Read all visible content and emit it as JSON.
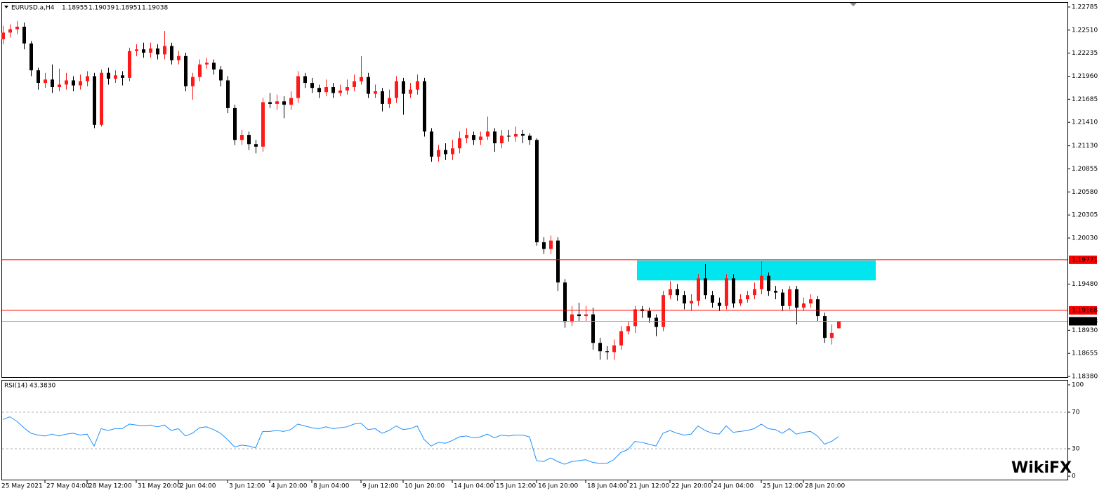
{
  "chart_data": {
    "type": "candlestick",
    "title": "EURUSD.a,H4",
    "bull_color": "#ff1a1a",
    "bear_color": "#000000",
    "ylim": [
      1.18372,
      1.22835
    ],
    "yticks": [
      1.22785,
      {
        "value": 1.2251,
        "label": "1.22510"
      },
      1.22235,
      {
        "value": 1.2196,
        "label": "1.21960"
      },
      1.21685,
      {
        "value": 1.2141,
        "label": "1.21410"
      },
      {
        "value": 1.2113,
        "label": "1.21130"
      },
      1.20855,
      {
        "value": 1.2058,
        "label": "1.20580"
      },
      1.20305,
      {
        "value": 1.2003,
        "label": "1.20030"
      },
      {
        "value": 1.1948,
        "label": "1.19480"
      },
      {
        "value": 1.1893,
        "label": "1.18930"
      },
      1.18655,
      {
        "value": 1.1838,
        "label": "1.18380"
      }
    ],
    "levels": [
      {
        "value": 1.19771,
        "color": "#ff0000"
      },
      {
        "value": 1.19168,
        "color": "#ff0000"
      }
    ],
    "zone": {
      "low": 1.19525,
      "high": 1.19763,
      "color": "#00e5ee"
    },
    "categories": [
      null,
      null,
      null,
      null,
      null,
      null,
      "27 May 04:00",
      null,
      null,
      null,
      null,
      null,
      "28 May 12:00",
      null,
      null,
      null,
      null,
      null,
      null,
      "31 May 20:00",
      null,
      null,
      null,
      null,
      null,
      "2 Jun 04:00",
      null,
      null,
      null,
      null,
      null,
      null,
      "3 Jun 12:00",
      null,
      null,
      null,
      null,
      null,
      "4 Jun 20:00",
      null,
      null,
      null,
      null,
      null,
      "8 Jun 04:00",
      null,
      null,
      null,
      null,
      null,
      null,
      "9 Jun 12:00",
      null,
      null,
      null,
      null,
      null,
      "10 Jun 20:00",
      null,
      null,
      null,
      null,
      null,
      null,
      "14 Jun 04:00",
      null,
      null,
      null,
      null,
      null,
      "15 Jun 12:00",
      null,
      null,
      null,
      null,
      null,
      "16 Jun 20:00",
      null,
      null,
      null,
      null,
      null,
      null,
      "18 Jun 04:00",
      null,
      null,
      null,
      null,
      null,
      "21 Jun 12:00",
      null,
      null,
      null,
      null,
      null,
      "22 Jun 20:00",
      null,
      null,
      null,
      null,
      null,
      "24 Jun 04:00",
      null,
      null,
      null,
      null,
      null,
      null,
      "25 Jun 12:00",
      null,
      null,
      null,
      null,
      null,
      "28 Jun 20:00",
      null,
      null,
      null,
      null,
      null
    ],
    "first_label": "25 May 2021",
    "candles": [
      [
        1.224,
        1.2256,
        1.2234,
        1.2248
      ],
      [
        1.2248,
        1.2258,
        1.2242,
        1.2252
      ],
      [
        1.2252,
        1.2262,
        1.2246,
        1.2255
      ],
      [
        1.2255,
        1.226,
        1.2228,
        1.2235
      ],
      [
        1.2235,
        1.2238,
        1.2196,
        1.2203
      ],
      [
        1.2203,
        1.2206,
        1.218,
        1.2188
      ],
      [
        1.2188,
        1.22,
        1.2182,
        1.2192
      ],
      [
        1.2192,
        1.221,
        1.2176,
        1.2183
      ],
      [
        1.2183,
        1.2205,
        1.2178,
        1.2186
      ],
      [
        1.2186,
        1.22,
        1.218,
        1.2191
      ],
      [
        1.2191,
        1.2196,
        1.2178,
        1.2185
      ],
      [
        1.2185,
        1.2198,
        1.218,
        1.219
      ],
      [
        1.219,
        1.2202,
        1.2184,
        1.2196
      ],
      [
        1.2196,
        1.22,
        1.2134,
        1.2138
      ],
      [
        1.2138,
        1.2204,
        1.2136,
        1.22
      ],
      [
        1.22,
        1.2206,
        1.2186,
        1.2193
      ],
      [
        1.2193,
        1.2203,
        1.2188,
        1.2197
      ],
      [
        1.2197,
        1.2202,
        1.2185,
        1.2194
      ],
      [
        1.2194,
        1.223,
        1.219,
        1.2226
      ],
      [
        1.2226,
        1.2234,
        1.222,
        1.2228
      ],
      [
        1.2228,
        1.2236,
        1.2218,
        1.2224
      ],
      [
        1.2224,
        1.2236,
        1.2218,
        1.2229
      ],
      [
        1.2229,
        1.2234,
        1.2216,
        1.2222
      ],
      [
        1.2222,
        1.225,
        1.2216,
        1.2232
      ],
      [
        1.2232,
        1.2236,
        1.221,
        1.2215
      ],
      [
        1.2215,
        1.2226,
        1.221,
        1.222
      ],
      [
        1.222,
        1.2224,
        1.2178,
        1.2184
      ],
      [
        1.2184,
        1.22,
        1.2168,
        1.2195
      ],
      [
        1.2195,
        1.2216,
        1.219,
        1.221
      ],
      [
        1.221,
        1.2218,
        1.2205,
        1.2212
      ],
      [
        1.2212,
        1.2216,
        1.2198,
        1.2204
      ],
      [
        1.2204,
        1.2208,
        1.2184,
        1.2191
      ],
      [
        1.2191,
        1.2196,
        1.2152,
        1.2158
      ],
      [
        1.2158,
        1.2162,
        1.2114,
        1.212
      ],
      [
        1.212,
        1.2132,
        1.2114,
        1.2126
      ],
      [
        1.2126,
        1.213,
        1.2108,
        1.2115
      ],
      [
        1.2115,
        1.212,
        1.2104,
        1.2112
      ],
      [
        1.2112,
        1.217,
        1.2106,
        1.2165
      ],
      [
        1.2165,
        1.2176,
        1.2158,
        1.2163
      ],
      [
        1.2163,
        1.2174,
        1.2156,
        1.2166
      ],
      [
        1.2166,
        1.2172,
        1.2146,
        1.2162
      ],
      [
        1.2162,
        1.2178,
        1.2156,
        1.217
      ],
      [
        1.217,
        1.2202,
        1.2164,
        1.2196
      ],
      [
        1.2196,
        1.22,
        1.2182,
        1.2188
      ],
      [
        1.2188,
        1.2194,
        1.2176,
        1.2182
      ],
      [
        1.2182,
        1.2186,
        1.217,
        1.2177
      ],
      [
        1.2177,
        1.2192,
        1.2172,
        1.2183
      ],
      [
        1.2183,
        1.2188,
        1.217,
        1.2176
      ],
      [
        1.2176,
        1.2186,
        1.2172,
        1.2179
      ],
      [
        1.2179,
        1.2192,
        1.2174,
        1.2183
      ],
      [
        1.2183,
        1.2198,
        1.2178,
        1.219
      ],
      [
        1.219,
        1.222,
        1.2186,
        1.2195
      ],
      [
        1.2195,
        1.22,
        1.217,
        1.2175
      ],
      [
        1.2175,
        1.2186,
        1.217,
        1.2178
      ],
      [
        1.2178,
        1.2182,
        1.2154,
        1.2163
      ],
      [
        1.2163,
        1.218,
        1.2158,
        1.217
      ],
      [
        1.217,
        1.2196,
        1.2164,
        1.219
      ],
      [
        1.219,
        1.2194,
        1.215,
        1.2175
      ],
      [
        1.2175,
        1.2188,
        1.217,
        1.218
      ],
      [
        1.218,
        1.2198,
        1.2174,
        1.219
      ],
      [
        1.219,
        1.2194,
        1.2124,
        1.213
      ],
      [
        1.213,
        1.2134,
        1.2094,
        1.21
      ],
      [
        1.21,
        1.2114,
        1.2094,
        1.2108
      ],
      [
        1.2108,
        1.2116,
        1.2096,
        1.2103
      ],
      [
        1.2103,
        1.212,
        1.2096,
        1.211
      ],
      [
        1.211,
        1.213,
        1.2104,
        1.2122
      ],
      [
        1.2122,
        1.2134,
        1.2116,
        1.2126
      ],
      [
        1.2126,
        1.213,
        1.2114,
        1.212
      ],
      [
        1.212,
        1.213,
        1.2114,
        1.2124
      ],
      [
        1.2124,
        1.2148,
        1.212,
        1.213
      ],
      [
        1.213,
        1.2134,
        1.2106,
        1.2116
      ],
      [
        1.2116,
        1.2132,
        1.211,
        1.2125
      ],
      [
        1.2125,
        1.2132,
        1.2118,
        1.2124
      ],
      [
        1.2124,
        1.2136,
        1.2118,
        1.2127
      ],
      [
        1.2127,
        1.2132,
        1.2116,
        1.2125
      ],
      [
        1.2125,
        1.2128,
        1.2114,
        1.212
      ],
      [
        1.212,
        1.2122,
        1.1994,
        1.1998
      ],
      [
        1.1998,
        1.2004,
        1.1984,
        1.199
      ],
      [
        1.199,
        1.2006,
        1.1984,
        1.2
      ],
      [
        1.2,
        1.2004,
        1.194,
        1.195
      ],
      [
        1.195,
        1.1954,
        1.1896,
        1.1903
      ],
      [
        1.1903,
        1.1922,
        1.1898,
        1.1912
      ],
      [
        1.1912,
        1.1926,
        1.1904,
        1.191
      ],
      [
        1.191,
        1.1922,
        1.1904,
        1.1912
      ],
      [
        1.1912,
        1.192,
        1.187,
        1.1878
      ],
      [
        1.1878,
        1.1884,
        1.1858,
        1.1868
      ],
      [
        1.1868,
        1.1874,
        1.1858,
        1.1867
      ],
      [
        1.1867,
        1.1882,
        1.1858,
        1.1875
      ],
      [
        1.1875,
        1.1898,
        1.187,
        1.1892
      ],
      [
        1.1892,
        1.1904,
        1.1888,
        1.1898
      ],
      [
        1.1898,
        1.1922,
        1.189,
        1.1918
      ],
      [
        1.1918,
        1.1922,
        1.1908,
        1.1916
      ],
      [
        1.1916,
        1.192,
        1.1902,
        1.1908
      ],
      [
        1.1908,
        1.1912,
        1.1886,
        1.1897
      ],
      [
        1.1897,
        1.194,
        1.1892,
        1.1935
      ],
      [
        1.1935,
        1.1952,
        1.193,
        1.1942
      ],
      [
        1.1942,
        1.1948,
        1.1928,
        1.1935
      ],
      [
        1.1935,
        1.194,
        1.1918,
        1.1925
      ],
      [
        1.1925,
        1.1936,
        1.1916,
        1.1928
      ],
      [
        1.1928,
        1.196,
        1.1922,
        1.1955
      ],
      [
        1.1955,
        1.1972,
        1.193,
        1.1935
      ],
      [
        1.1935,
        1.194,
        1.192,
        1.1926
      ],
      [
        1.1926,
        1.1932,
        1.1916,
        1.1922
      ],
      [
        1.1922,
        1.196,
        1.1918,
        1.1955
      ],
      [
        1.1955,
        1.196,
        1.192,
        1.1925
      ],
      [
        1.1925,
        1.1936,
        1.1922,
        1.193
      ],
      [
        1.193,
        1.194,
        1.1926,
        1.1935
      ],
      [
        1.1935,
        1.195,
        1.193,
        1.1942
      ],
      [
        1.1942,
        1.1975,
        1.1936,
        1.1958
      ],
      [
        1.1958,
        1.1962,
        1.1934,
        1.194
      ],
      [
        1.194,
        1.1946,
        1.193,
        1.1938
      ],
      [
        1.1938,
        1.1942,
        1.1916,
        1.1922
      ],
      [
        1.1922,
        1.1946,
        1.1918,
        1.1942
      ],
      [
        1.1942,
        1.1946,
        1.19,
        1.192
      ],
      [
        1.192,
        1.1932,
        1.1916,
        1.1925
      ],
      [
        1.1925,
        1.1936,
        1.192,
        1.193
      ],
      [
        1.193,
        1.1934,
        1.1904,
        1.191
      ],
      [
        1.191,
        1.1914,
        1.1878,
        1.1884
      ],
      [
        1.1884,
        1.19,
        1.1876,
        1.189
      ],
      [
        1.18955,
        1.19039,
        1.18951,
        1.19038
      ]
    ],
    "rsi": {
      "title": "RSI(14) 43.3830",
      "color": "#1e90ff",
      "ylim": [
        -3.8,
        104.6
      ],
      "yticks": [
        100,
        70,
        30,
        0
      ],
      "levels": [
        70,
        30
      ],
      "values": [
        62,
        65,
        60,
        53,
        47,
        45,
        44,
        46,
        44,
        46,
        47,
        45,
        46,
        33,
        52,
        50,
        52,
        52,
        57,
        56,
        55,
        56,
        54,
        56,
        50,
        52,
        44,
        47,
        53,
        54,
        51,
        47,
        40,
        32,
        34,
        33,
        31,
        49,
        49,
        50,
        49,
        51,
        57,
        55,
        53,
        52,
        54,
        52,
        53,
        54,
        57,
        58,
        51,
        52,
        47,
        50,
        55,
        51,
        52,
        55,
        40,
        33,
        37,
        36,
        39,
        43,
        44,
        42,
        43,
        46,
        42,
        45,
        44,
        45,
        45,
        43,
        17,
        16,
        20,
        16,
        13,
        16,
        17,
        18,
        15,
        14,
        14,
        18,
        26,
        29,
        38,
        37,
        35,
        33,
        47,
        50,
        47,
        45,
        46,
        55,
        50,
        47,
        46,
        55,
        48,
        49,
        50,
        52,
        57,
        52,
        51,
        47,
        52,
        46,
        48,
        49,
        44,
        35,
        38,
        43.383
      ]
    },
    "watermark": "WikiFX"
  }
}
